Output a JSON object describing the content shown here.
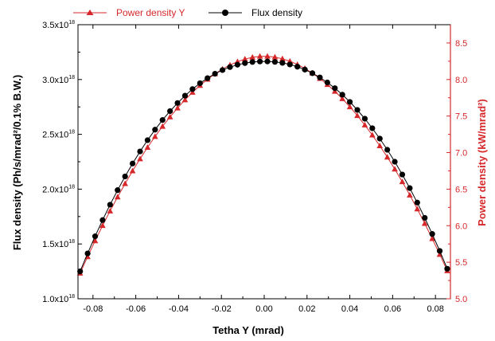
{
  "chart_data": {
    "type": "line",
    "title": "",
    "xlabel": "Tetha Y (mrad)",
    "ylabel_left": "Flux density (Ph/s/mrad²/0.1% B.W.)",
    "ylabel_right": "Power density (kW/mrad²)",
    "xlim": [
      -0.087,
      0.087
    ],
    "ylim_left": [
      1e+18,
      3.5e+18
    ],
    "ylim_right": [
      5.0,
      8.75
    ],
    "x_ticks": [
      -0.08,
      -0.06,
      -0.04,
      -0.02,
      0.0,
      0.02,
      0.04,
      0.06,
      0.08
    ],
    "x_tick_labels": [
      "-0.08",
      "-0.06",
      "-0.04",
      "-0.02",
      "0.00",
      "0.02",
      "0.04",
      "0.06",
      "0.08"
    ],
    "y_left_ticks": [
      1e+18,
      1.5e+18,
      2e+18,
      2.5e+18,
      3e+18,
      3.5e+18
    ],
    "y_left_tick_labels": [
      {
        "mantissa": "1.0x10",
        "exp": "18"
      },
      {
        "mantissa": "1.5x10",
        "exp": "18"
      },
      {
        "mantissa": "2.0x10",
        "exp": "18"
      },
      {
        "mantissa": "2.5x10",
        "exp": "18"
      },
      {
        "mantissa": "3.0x10",
        "exp": "18"
      },
      {
        "mantissa": "3.5x10",
        "exp": "18"
      }
    ],
    "y_right_ticks": [
      5.0,
      5.5,
      6.0,
      6.5,
      7.0,
      7.5,
      8.0,
      8.5
    ],
    "y_right_tick_labels": [
      "5.0",
      "5.5",
      "6.0",
      "6.5",
      "7.0",
      "7.5",
      "8.0",
      "8.5"
    ],
    "legend_position": "top",
    "grid": false,
    "series": [
      {
        "name": "Power density Y",
        "axis": "right",
        "color": "#d6282b",
        "marker": "triangle",
        "center": 0.0,
        "peak": 8.32,
        "edge_value": 5.35,
        "half_range": 0.086,
        "step": 0.0035
      },
      {
        "name": "Flux density",
        "axis": "left",
        "color": "#000000",
        "marker": "circle",
        "center": 0.0,
        "peak": 3.165e+18,
        "edge_value": 1.25e+18,
        "half_range": 0.086,
        "step": 0.0035
      }
    ]
  }
}
